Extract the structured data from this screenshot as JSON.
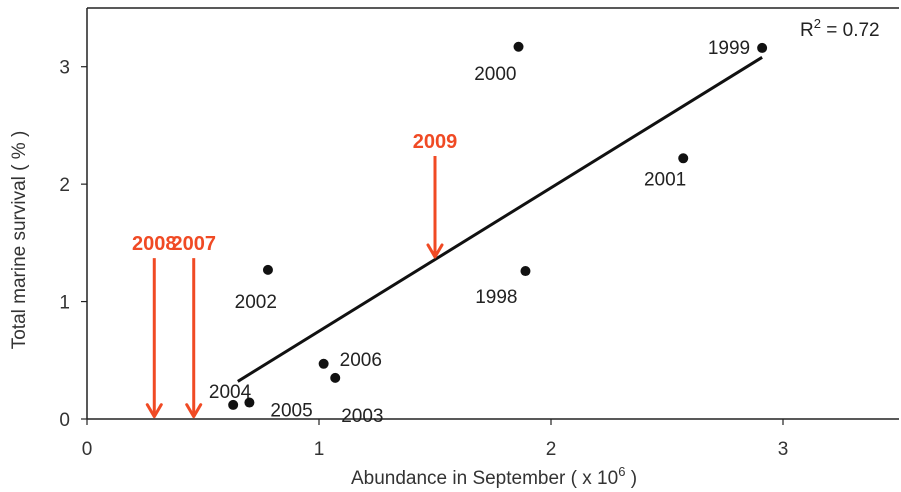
{
  "chart_data": {
    "type": "scatter",
    "xlabel": "Abundance in September ( x 10 6 )",
    "xlabel_main": "Abundance in September ( x 10",
    "xlabel_sup": "6",
    "xlabel_end": " )",
    "ylabel": "Total marine survival  ( % )",
    "xlim": [
      0,
      3.5
    ],
    "ylim": [
      0,
      3.5
    ],
    "xticks": [
      0,
      1,
      2,
      3
    ],
    "yticks": [
      0,
      1,
      2,
      3
    ],
    "grid": false,
    "points": [
      {
        "label": "1998",
        "x": 1.89,
        "y": 1.26
      },
      {
        "label": "1999",
        "x": 2.91,
        "y": 3.16
      },
      {
        "label": "2000",
        "x": 1.86,
        "y": 3.17
      },
      {
        "label": "2001",
        "x": 2.57,
        "y": 2.22
      },
      {
        "label": "2002",
        "x": 0.78,
        "y": 1.27
      },
      {
        "label": "2003",
        "x": 1.07,
        "y": 0.35
      },
      {
        "label": "2004",
        "x": 0.63,
        "y": 0.12
      },
      {
        "label": "2005",
        "x": 0.7,
        "y": 0.14
      },
      {
        "label": "2006",
        "x": 1.02,
        "y": 0.47
      }
    ],
    "trendline": {
      "x": [
        0.65,
        2.91
      ],
      "y": [
        0.32,
        3.08
      ]
    },
    "r_squared": {
      "text_main": "R",
      "text_sup": "2",
      "text_end": " = 0.72"
    },
    "arrows": [
      {
        "label": "2008",
        "x": 0.29,
        "y_top": 1.37,
        "y_bottom": 0.02,
        "color": "#f04a24"
      },
      {
        "label": "2007",
        "x": 0.46,
        "y_top": 1.37,
        "y_bottom": 0.02,
        "color": "#f04a24"
      },
      {
        "label": "2009",
        "x": 1.5,
        "y_top": 2.24,
        "y_bottom": 1.38,
        "color": "#f04a24"
      }
    ]
  }
}
